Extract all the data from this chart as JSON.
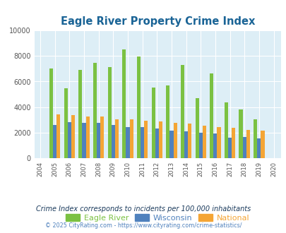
{
  "title": "Eagle River Property Crime Index",
  "years": [
    2004,
    2005,
    2006,
    2007,
    2008,
    2009,
    2010,
    2011,
    2012,
    2013,
    2014,
    2015,
    2016,
    2017,
    2018,
    2019,
    2020
  ],
  "eagle_river": [
    null,
    7000,
    5500,
    6900,
    7450,
    7150,
    8500,
    7950,
    5550,
    5700,
    7300,
    4700,
    6650,
    4400,
    3800,
    3050,
    null
  ],
  "wisconsin": [
    null,
    2600,
    2850,
    2800,
    2750,
    2600,
    2450,
    2450,
    2350,
    2150,
    2100,
    2000,
    1950,
    1600,
    1700,
    1550,
    null
  ],
  "national": [
    null,
    3450,
    3400,
    3300,
    3250,
    3050,
    3050,
    2950,
    2900,
    2800,
    2700,
    2550,
    2450,
    2400,
    2250,
    2150,
    null
  ],
  "eagle_river_color": "#7bc142",
  "wisconsin_color": "#4f81bd",
  "national_color": "#f4a535",
  "plot_bg_color": "#ddeef6",
  "ylim": [
    0,
    10000
  ],
  "yticks": [
    0,
    2000,
    4000,
    6000,
    8000,
    10000
  ],
  "legend_labels": [
    "Eagle River",
    "Wisconsin",
    "National"
  ],
  "footnote1": "Crime Index corresponds to incidents per 100,000 inhabitants",
  "footnote2": "© 2025 CityRating.com - https://www.cityrating.com/crime-statistics/",
  "title_color": "#1a6496",
  "footnote1_color": "#1a3a5c",
  "footnote2_color": "#4f81bd"
}
